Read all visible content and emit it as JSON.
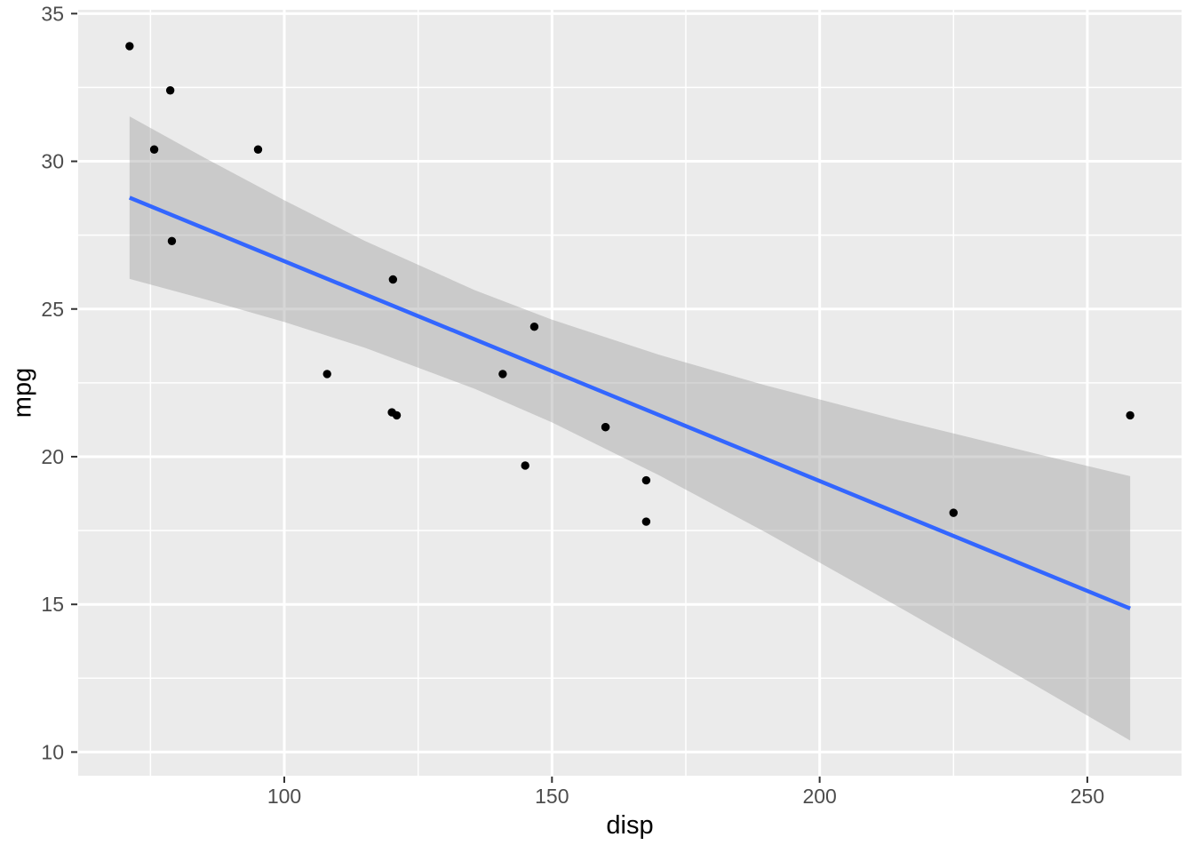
{
  "chart_data": {
    "type": "scatter",
    "title": "",
    "xlabel": "disp",
    "ylabel": "mpg",
    "xlim": [
      61.5,
      267.6
    ],
    "ylim": [
      9.2,
      35.13
    ],
    "x_ticks": [
      100,
      150,
      200,
      250
    ],
    "y_ticks": [
      10,
      15,
      20,
      25,
      30,
      35
    ],
    "x_minor_ticks": [
      75,
      125,
      175,
      225
    ],
    "y_minor_ticks": [
      12.5,
      17.5,
      22.5,
      27.5,
      32.5
    ],
    "grid": true,
    "legend": "none",
    "points": [
      {
        "disp": 71.1,
        "mpg": 33.9
      },
      {
        "disp": 78.7,
        "mpg": 32.4
      },
      {
        "disp": 75.7,
        "mpg": 30.4
      },
      {
        "disp": 95.1,
        "mpg": 30.4
      },
      {
        "disp": 79.0,
        "mpg": 27.3
      },
      {
        "disp": 120.3,
        "mpg": 26.0
      },
      {
        "disp": 146.7,
        "mpg": 24.4
      },
      {
        "disp": 108.0,
        "mpg": 22.8
      },
      {
        "disp": 140.8,
        "mpg": 22.8
      },
      {
        "disp": 120.1,
        "mpg": 21.5
      },
      {
        "disp": 121.0,
        "mpg": 21.4
      },
      {
        "disp": 258.0,
        "mpg": 21.4
      },
      {
        "disp": 160.0,
        "mpg": 21.0
      },
      {
        "disp": 160.0,
        "mpg": 21.0
      },
      {
        "disp": 145.0,
        "mpg": 19.7
      },
      {
        "disp": 167.6,
        "mpg": 19.2
      },
      {
        "disp": 167.6,
        "mpg": 17.8
      },
      {
        "disp": 225.0,
        "mpg": 18.1
      }
    ],
    "smooth_line": {
      "method": "lm",
      "x": [
        71.1,
        258.0
      ],
      "y": [
        28.77,
        14.86
      ]
    },
    "confidence_ribbon": [
      {
        "x": 71.1,
        "lower": 26.02,
        "upper": 31.52
      },
      {
        "x": 85.0,
        "lower": 25.34,
        "upper": 30.13
      },
      {
        "x": 100.0,
        "lower": 24.56,
        "upper": 28.68
      },
      {
        "x": 115.0,
        "lower": 23.69,
        "upper": 27.31
      },
      {
        "x": 135.54,
        "lower": 22.3,
        "upper": 25.64
      },
      {
        "x": 150.0,
        "lower": 21.16,
        "upper": 24.64
      },
      {
        "x": 170.0,
        "lower": 19.37,
        "upper": 23.45
      },
      {
        "x": 190.0,
        "lower": 17.43,
        "upper": 22.41
      },
      {
        "x": 215.0,
        "lower": 14.89,
        "upper": 21.23
      },
      {
        "x": 240.0,
        "lower": 12.29,
        "upper": 20.12
      },
      {
        "x": 258.0,
        "lower": 10.39,
        "upper": 19.34
      }
    ],
    "colors": {
      "panel_background": "#EBEBEB",
      "gridline": "#FFFFFF",
      "ribbon_fill": "#999999",
      "ribbon_opacity": "0.4",
      "smooth_line": "#3366FF",
      "point": "#000000",
      "tick_label": "#4D4D4D",
      "tick_mark": "#333333",
      "axis_title": "#000000"
    }
  }
}
